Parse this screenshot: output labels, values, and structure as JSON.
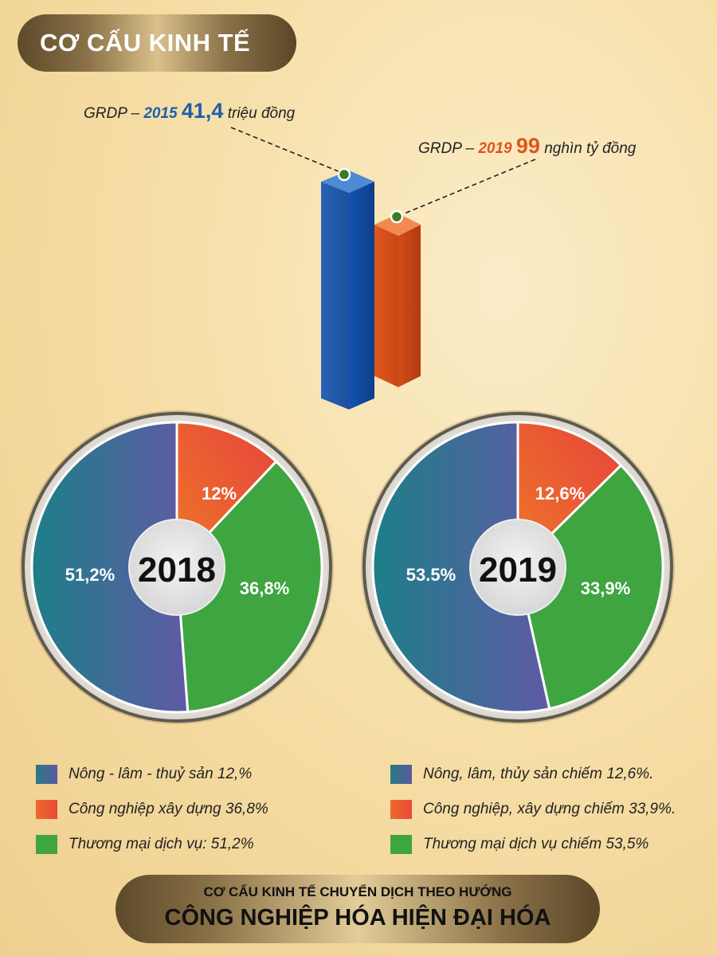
{
  "header": {
    "title": "CƠ CẤU KINH TẾ"
  },
  "grdp": {
    "y2015": {
      "prefix": "GRDP – ",
      "year": "2015",
      "value": "41,4",
      "unit": "triệu đồng"
    },
    "y2019": {
      "prefix": "GRDP – ",
      "year": "2019",
      "value": "99",
      "unit": "nghìn tỷ đồng"
    }
  },
  "colors": {
    "blue": "#1f5eaa",
    "orange": "#e0551c",
    "agriculture": "#4a6a9c",
    "industry": "#ec5a30",
    "services": "#3fa541"
  },
  "chart_data": [
    {
      "type": "bar",
      "categories": [
        "2015",
        "2019"
      ],
      "values": [
        41.4,
        99
      ],
      "units": [
        "triệu đồng",
        "nghìn tỷ đồng"
      ]
    },
    {
      "type": "pie",
      "title": "2018",
      "slices": [
        {
          "label": "12%",
          "value": 12
        },
        {
          "label": "36,8%",
          "value": 36.8
        },
        {
          "label": "51,2%",
          "value": 51.2
        }
      ]
    },
    {
      "type": "pie",
      "title": "2019",
      "slices": [
        {
          "label": "12,6%",
          "value": 12.6
        },
        {
          "label": "33,9%",
          "value": 33.9
        },
        {
          "label": "53.5%",
          "value": 53.5
        }
      ]
    }
  ],
  "legend_2018": [
    "Nông - lâm - thuỷ sản 12,%",
    "Công nghiệp xây dựng 36,8%",
    "Thương mại dịch vụ: 51,2%"
  ],
  "legend_2019": [
    "Nông, lâm, thủy sản chiếm 12,6%.",
    "Công nghiệp, xây dựng chiếm 33,9%.",
    "Thương mại dịch vụ chiếm 53,5%"
  ],
  "footer": {
    "line1": "CƠ CẤU KINH TẾ CHUYỂN DỊCH THEO HƯỚNG",
    "line2": "CÔNG NGHIỆP HÓA HIỆN ĐẠI HÓA"
  }
}
